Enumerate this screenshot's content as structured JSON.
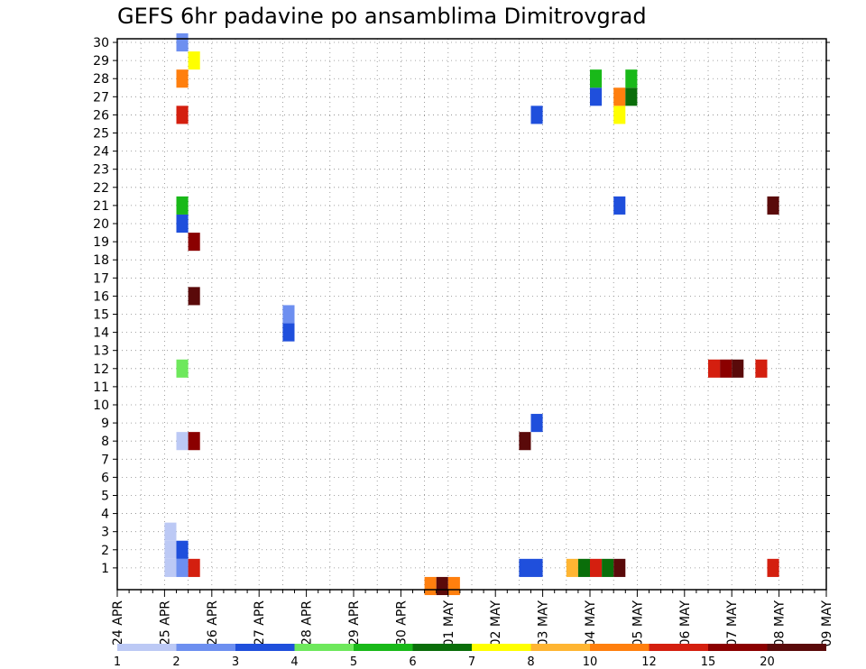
{
  "chart_data": {
    "type": "heatmap",
    "title": "GEFS 6hr padavine po ansamblima Dimitrovgrad",
    "xlabel": "",
    "ylabel": "",
    "members": [
      1,
      2,
      3,
      4,
      5,
      6,
      7,
      8,
      9,
      10,
      11,
      12,
      13,
      14,
      15,
      16,
      17,
      18,
      19,
      20,
      21,
      22,
      23,
      24,
      25,
      26,
      27,
      28,
      29,
      30
    ],
    "time_step_hours": 6,
    "x_tick_labels": [
      "24 APR",
      "25 APR",
      "26 APR",
      "27 APR",
      "28 APR",
      "29 APR",
      "30 APR",
      "01 MAY",
      "02 MAY",
      "03 MAY",
      "04 MAY",
      "05 MAY",
      "06 MAY",
      "07 MAY",
      "08 MAY",
      "09 MAY"
    ],
    "colorbar": {
      "levels": [
        "1",
        "2",
        "3",
        "4",
        "5",
        "6",
        "7",
        "8",
        "10",
        "12",
        "15",
        "20"
      ],
      "colors": [
        "#bcc9f5",
        "#6d8ff0",
        "#1f4fdc",
        "#6ee85c",
        "#19b919",
        "#0a6e0a",
        "#ffff00",
        "#ffb532",
        "#ff7f0e",
        "#d41f0f",
        "#8b0000",
        "#5a0a0a"
      ]
    },
    "grid": true,
    "cells": [
      {
        "day": "25 APR",
        "step": 2,
        "member": 1,
        "class": 1
      },
      {
        "day": "25 APR",
        "step": 2,
        "member": 2,
        "class": 1
      },
      {
        "day": "25 APR",
        "step": 2,
        "member": 3,
        "class": 1
      },
      {
        "day": "25 APR",
        "step": 3,
        "member": 1,
        "class": 2
      },
      {
        "day": "25 APR",
        "step": 3,
        "member": 2,
        "class": 3
      },
      {
        "day": "25 APR",
        "step": 3,
        "member": 8,
        "class": 1
      },
      {
        "day": "25 APR",
        "step": 3,
        "member": 12,
        "class": 4
      },
      {
        "day": "25 APR",
        "step": 3,
        "member": 20,
        "class": 3
      },
      {
        "day": "25 APR",
        "step": 3,
        "member": 21,
        "class": 5
      },
      {
        "day": "25 APR",
        "step": 3,
        "member": 26,
        "class": 10
      },
      {
        "day": "25 APR",
        "step": 3,
        "member": 28,
        "class": 9
      },
      {
        "day": "25 APR",
        "step": 3,
        "member": 30,
        "class": 2
      },
      {
        "day": "26 APR",
        "step": 0,
        "member": 1,
        "class": 10
      },
      {
        "day": "26 APR",
        "step": 0,
        "member": 8,
        "class": 11
      },
      {
        "day": "26 APR",
        "step": 0,
        "member": 16,
        "class": 12
      },
      {
        "day": "26 APR",
        "step": 0,
        "member": 19,
        "class": 11
      },
      {
        "day": "26 APR",
        "step": 0,
        "member": 29,
        "class": 7
      },
      {
        "day": "28 APR",
        "step": 0,
        "member": 14,
        "class": 3
      },
      {
        "day": "28 APR",
        "step": 0,
        "member": 15,
        "class": 2
      },
      {
        "day": "01 MAY",
        "step": 0,
        "member": 0,
        "class": 9
      },
      {
        "day": "01 MAY",
        "step": 1,
        "member": 0,
        "class": 12
      },
      {
        "day": "01 MAY",
        "step": 2,
        "member": 0,
        "class": 9
      },
      {
        "day": "03 MAY",
        "step": 0,
        "member": 1,
        "class": 3
      },
      {
        "day": "03 MAY",
        "step": 0,
        "member": 8,
        "class": 12
      },
      {
        "day": "03 MAY",
        "step": 1,
        "member": 1,
        "class": 3
      },
      {
        "day": "03 MAY",
        "step": 1,
        "member": 26,
        "class": 3
      },
      {
        "day": "03 MAY",
        "step": 1,
        "member": 9,
        "class": 3
      },
      {
        "day": "04 MAY",
        "step": 0,
        "member": 1,
        "class": 8
      },
      {
        "day": "04 MAY",
        "step": 1,
        "member": 1,
        "class": 6
      },
      {
        "day": "04 MAY",
        "step": 2,
        "member": 1,
        "class": 10
      },
      {
        "day": "04 MAY",
        "step": 3,
        "member": 1,
        "class": 6
      },
      {
        "day": "04 MAY",
        "step": 2,
        "member": 27,
        "class": 3
      },
      {
        "day": "04 MAY",
        "step": 2,
        "member": 28,
        "class": 5
      },
      {
        "day": "05 MAY",
        "step": 0,
        "member": 1,
        "class": 12
      },
      {
        "day": "05 MAY",
        "step": 0,
        "member": 26,
        "class": 7
      },
      {
        "day": "05 MAY",
        "step": 0,
        "member": 27,
        "class": 9
      },
      {
        "day": "05 MAY",
        "step": 1,
        "member": 27,
        "class": 6
      },
      {
        "day": "05 MAY",
        "step": 1,
        "member": 28,
        "class": 5
      },
      {
        "day": "05 MAY",
        "step": 0,
        "member": 21,
        "class": 3
      },
      {
        "day": "07 MAY",
        "step": 0,
        "member": 12,
        "class": 10
      },
      {
        "day": "07 MAY",
        "step": 1,
        "member": 12,
        "class": 11
      },
      {
        "day": "07 MAY",
        "step": 2,
        "member": 12,
        "class": 12
      },
      {
        "day": "08 MAY",
        "step": 1,
        "member": 21,
        "class": 12
      },
      {
        "day": "08 MAY",
        "step": 1,
        "member": 1,
        "class": 10
      },
      {
        "day": "08 MAY",
        "step": 0,
        "member": 12,
        "class": 10
      }
    ]
  }
}
